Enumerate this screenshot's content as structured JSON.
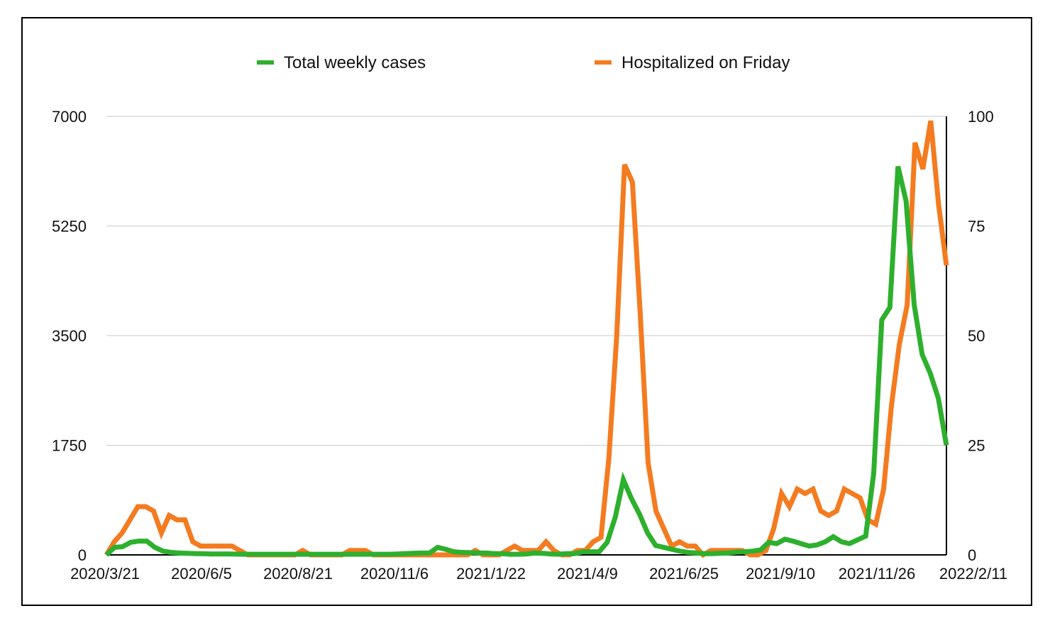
{
  "chart_data": {
    "type": "line",
    "title": "",
    "legend_position": "top",
    "grid": true,
    "left_axis": {
      "ylim": [
        0,
        7000
      ],
      "ticks": [
        "0",
        "1750",
        "3500",
        "5250",
        "7000"
      ]
    },
    "right_axis": {
      "ylim": [
        0,
        100
      ],
      "ticks": [
        "0",
        "25",
        "50",
        "75",
        "100"
      ]
    },
    "x_tick_labels": [
      "2020/3/21",
      "2020/6/5",
      "2020/8/21",
      "2020/11/6",
      "2021/1/22",
      "2021/4/9",
      "2021/6/25",
      "2021/9/10",
      "2021/11/26",
      "2022/2/11"
    ],
    "series": [
      {
        "name": "Total weekly cases",
        "axis": "left",
        "color": "#2db02d",
        "values": [
          0,
          120,
          130,
          200,
          220,
          220,
          120,
          60,
          40,
          30,
          25,
          20,
          18,
          15,
          15,
          15,
          12,
          10,
          10,
          10,
          10,
          10,
          10,
          10,
          10,
          10,
          10,
          10,
          10,
          10,
          10,
          10,
          10,
          10,
          10,
          10,
          15,
          20,
          25,
          30,
          30,
          120,
          90,
          50,
          40,
          35,
          30,
          30,
          20,
          20,
          10,
          10,
          15,
          30,
          25,
          15,
          10,
          20,
          20,
          50,
          50,
          50,
          200,
          600,
          1200,
          900,
          650,
          350,
          150,
          120,
          90,
          60,
          40,
          30,
          20,
          20,
          25,
          30,
          45,
          50,
          60,
          80,
          200,
          180,
          250,
          220,
          180,
          140,
          160,
          210,
          290,
          210,
          180,
          240,
          300,
          1300,
          3750,
          3950,
          6200,
          5650,
          4000,
          3200,
          2900,
          2500,
          1750
        ]
      },
      {
        "name": "Hospitalized on Friday",
        "axis": "right",
        "color": "#f47b20",
        "values": [
          0,
          3,
          5,
          8,
          11,
          11,
          10,
          5,
          9,
          8,
          8,
          3,
          2,
          2,
          2,
          2,
          2,
          1,
          0,
          0,
          0,
          0,
          0,
          0,
          0,
          1,
          0,
          0,
          0,
          0,
          0,
          1,
          1,
          1,
          0,
          0,
          0,
          0,
          0,
          0,
          0,
          0,
          0,
          0,
          0,
          0,
          0,
          1,
          0,
          0,
          0,
          1,
          2,
          1,
          1,
          1,
          3,
          1,
          0,
          0,
          1,
          1,
          3,
          4,
          22,
          50,
          89,
          85,
          55,
          21,
          10,
          6,
          2,
          3,
          2,
          2,
          0,
          1,
          1,
          1,
          1,
          1,
          0,
          0,
          1,
          6,
          14,
          11,
          15,
          14,
          15,
          10,
          9,
          10,
          15,
          14,
          13,
          8,
          7,
          15,
          34,
          48,
          57,
          94,
          88,
          99,
          80,
          66
        ]
      }
    ]
  }
}
